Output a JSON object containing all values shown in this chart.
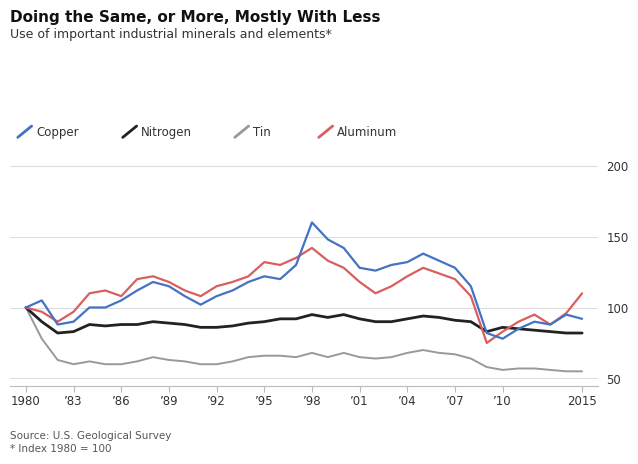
{
  "title": "Doing the Same, or More, Mostly With Less",
  "subtitle": "Use of important industrial minerals and elements*",
  "source_line1": "Source: U.S. Geological Survey",
  "source_line2": "* Index 1980 = 100",
  "legend": [
    "Copper",
    "Nitrogen",
    "Tin",
    "Aluminum"
  ],
  "colors": {
    "Copper": "#4472C4",
    "Nitrogen": "#222222",
    "Tin": "#999999",
    "Aluminum": "#D95F5F"
  },
  "years": [
    1980,
    1981,
    1982,
    1983,
    1984,
    1985,
    1986,
    1987,
    1988,
    1989,
    1990,
    1991,
    1992,
    1993,
    1994,
    1995,
    1996,
    1997,
    1998,
    1999,
    2000,
    2001,
    2002,
    2003,
    2004,
    2005,
    2006,
    2007,
    2008,
    2009,
    2010,
    2011,
    2012,
    2013,
    2014,
    2015
  ],
  "Copper": [
    100,
    105,
    88,
    90,
    100,
    100,
    105,
    112,
    118,
    115,
    108,
    102,
    108,
    112,
    118,
    122,
    120,
    130,
    160,
    148,
    142,
    128,
    126,
    130,
    132,
    138,
    133,
    128,
    115,
    82,
    78,
    85,
    90,
    88,
    95,
    92
  ],
  "Nitrogen": [
    100,
    90,
    82,
    83,
    88,
    87,
    88,
    88,
    90,
    89,
    88,
    86,
    86,
    87,
    89,
    90,
    92,
    92,
    95,
    93,
    95,
    92,
    90,
    90,
    92,
    94,
    93,
    91,
    90,
    83,
    86,
    85,
    84,
    83,
    82,
    82
  ],
  "Tin": [
    100,
    78,
    63,
    60,
    62,
    60,
    60,
    62,
    65,
    63,
    62,
    60,
    60,
    62,
    65,
    66,
    66,
    65,
    68,
    65,
    68,
    65,
    64,
    65,
    68,
    70,
    68,
    67,
    64,
    58,
    56,
    57,
    57,
    56,
    55,
    55
  ],
  "Aluminum": [
    100,
    97,
    90,
    97,
    110,
    112,
    108,
    120,
    122,
    118,
    112,
    108,
    115,
    118,
    122,
    132,
    130,
    135,
    142,
    133,
    128,
    118,
    110,
    115,
    122,
    128,
    124,
    120,
    108,
    75,
    83,
    90,
    95,
    88,
    96,
    110
  ],
  "ylim": [
    45,
    210
  ],
  "yticks": [
    50,
    100,
    150,
    200
  ],
  "xticks": [
    1980,
    1983,
    1986,
    1989,
    1992,
    1995,
    1998,
    2001,
    2004,
    2007,
    2010,
    2015
  ],
  "xlabels": [
    "1980",
    "’83",
    "’86",
    "’89",
    "’92",
    "’95",
    "’98",
    "’01",
    "’04",
    "’07",
    "’10",
    "2015"
  ],
  "bg_color": "#ffffff",
  "grid_color": "#dddddd",
  "spine_color": "#bbbbbb"
}
